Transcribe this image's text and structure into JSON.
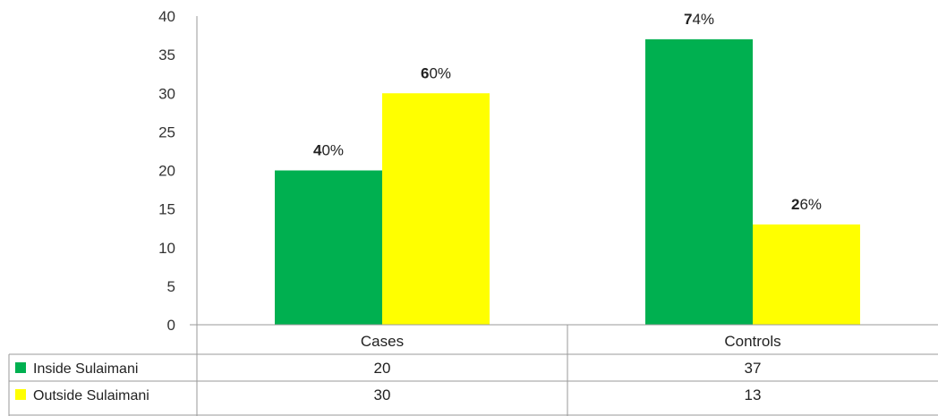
{
  "chart_data": {
    "type": "bar",
    "categories": [
      "Cases",
      "Controls"
    ],
    "series": [
      {
        "name": "Inside Sulaimani",
        "values": [
          20,
          37
        ],
        "color": "#00b050"
      },
      {
        "name": "Outside Sulaimani",
        "values": [
          30,
          13
        ],
        "color": "#ffff00"
      }
    ],
    "data_labels": [
      [
        "40%",
        "74%"
      ],
      [
        "60%",
        "26%"
      ]
    ],
    "yticks": [
      "0",
      "5",
      "10",
      "15",
      "20",
      "25",
      "30",
      "35",
      "40"
    ],
    "ylim": [
      0,
      40
    ],
    "grid": false,
    "legend": "data table"
  },
  "table": {
    "rows": [
      {
        "label": "Inside Sulaimani",
        "cells": [
          "20",
          "37"
        ]
      },
      {
        "label": "Outside Sulaimani",
        "cells": [
          "30",
          "13"
        ]
      }
    ]
  }
}
